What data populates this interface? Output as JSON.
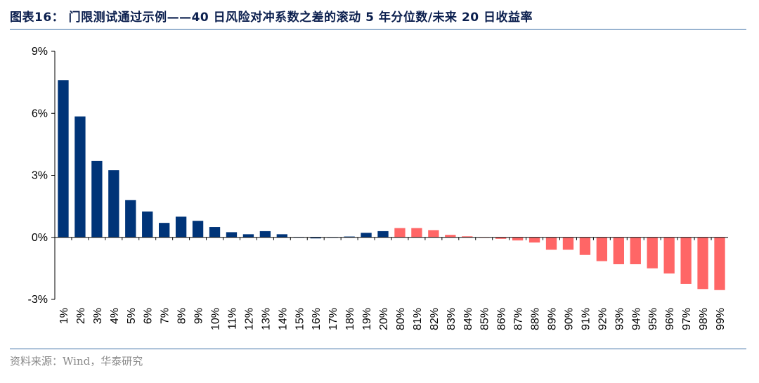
{
  "header": {
    "title": "图表16： 门限测试通过示例——40 日风险对冲系数之差的滚动 5 年分位数/未来 20 日收益率"
  },
  "footer": {
    "source": "资料来源：Wind，华泰研究"
  },
  "colors": {
    "low": "#003478",
    "high": "#ff6666",
    "axis": "#000000",
    "rule": "#3a6ea5"
  },
  "chart_data": {
    "type": "bar",
    "title": "",
    "xlabel": "",
    "ylabel": "",
    "ylim": [
      -3,
      9
    ],
    "yticks": [
      -3,
      0,
      3,
      6,
      9
    ],
    "ytick_labels": [
      "-3%",
      "0%",
      "3%",
      "6%",
      "9%"
    ],
    "grid": false,
    "categories": [
      "1%",
      "2%",
      "3%",
      "4%",
      "5%",
      "6%",
      "7%",
      "8%",
      "9%",
      "10%",
      "11%",
      "12%",
      "13%",
      "14%",
      "15%",
      "16%",
      "17%",
      "18%",
      "19%",
      "20%",
      "80%",
      "81%",
      "82%",
      "83%",
      "84%",
      "85%",
      "86%",
      "87%",
      "88%",
      "89%",
      "90%",
      "91%",
      "92%",
      "93%",
      "94%",
      "95%",
      "96%",
      "97%",
      "98%",
      "99%"
    ],
    "values": [
      7.6,
      5.85,
      3.7,
      3.25,
      1.8,
      1.25,
      0.7,
      1.0,
      0.8,
      0.5,
      0.25,
      0.15,
      0.3,
      0.15,
      0.02,
      -0.05,
      0.0,
      0.04,
      0.22,
      0.3,
      0.45,
      0.45,
      0.35,
      0.12,
      0.05,
      -0.02,
      -0.07,
      -0.15,
      -0.25,
      -0.6,
      -0.6,
      -0.85,
      -1.15,
      -1.3,
      -1.3,
      -1.5,
      -1.75,
      -2.25,
      -2.5,
      -2.55
    ],
    "bar_color_group": [
      "low",
      "low",
      "low",
      "low",
      "low",
      "low",
      "low",
      "low",
      "low",
      "low",
      "low",
      "low",
      "low",
      "low",
      "low",
      "low",
      "low",
      "low",
      "low",
      "low",
      "high",
      "high",
      "high",
      "high",
      "high",
      "high",
      "high",
      "high",
      "high",
      "high",
      "high",
      "high",
      "high",
      "high",
      "high",
      "high",
      "high",
      "high",
      "high",
      "high"
    ]
  }
}
